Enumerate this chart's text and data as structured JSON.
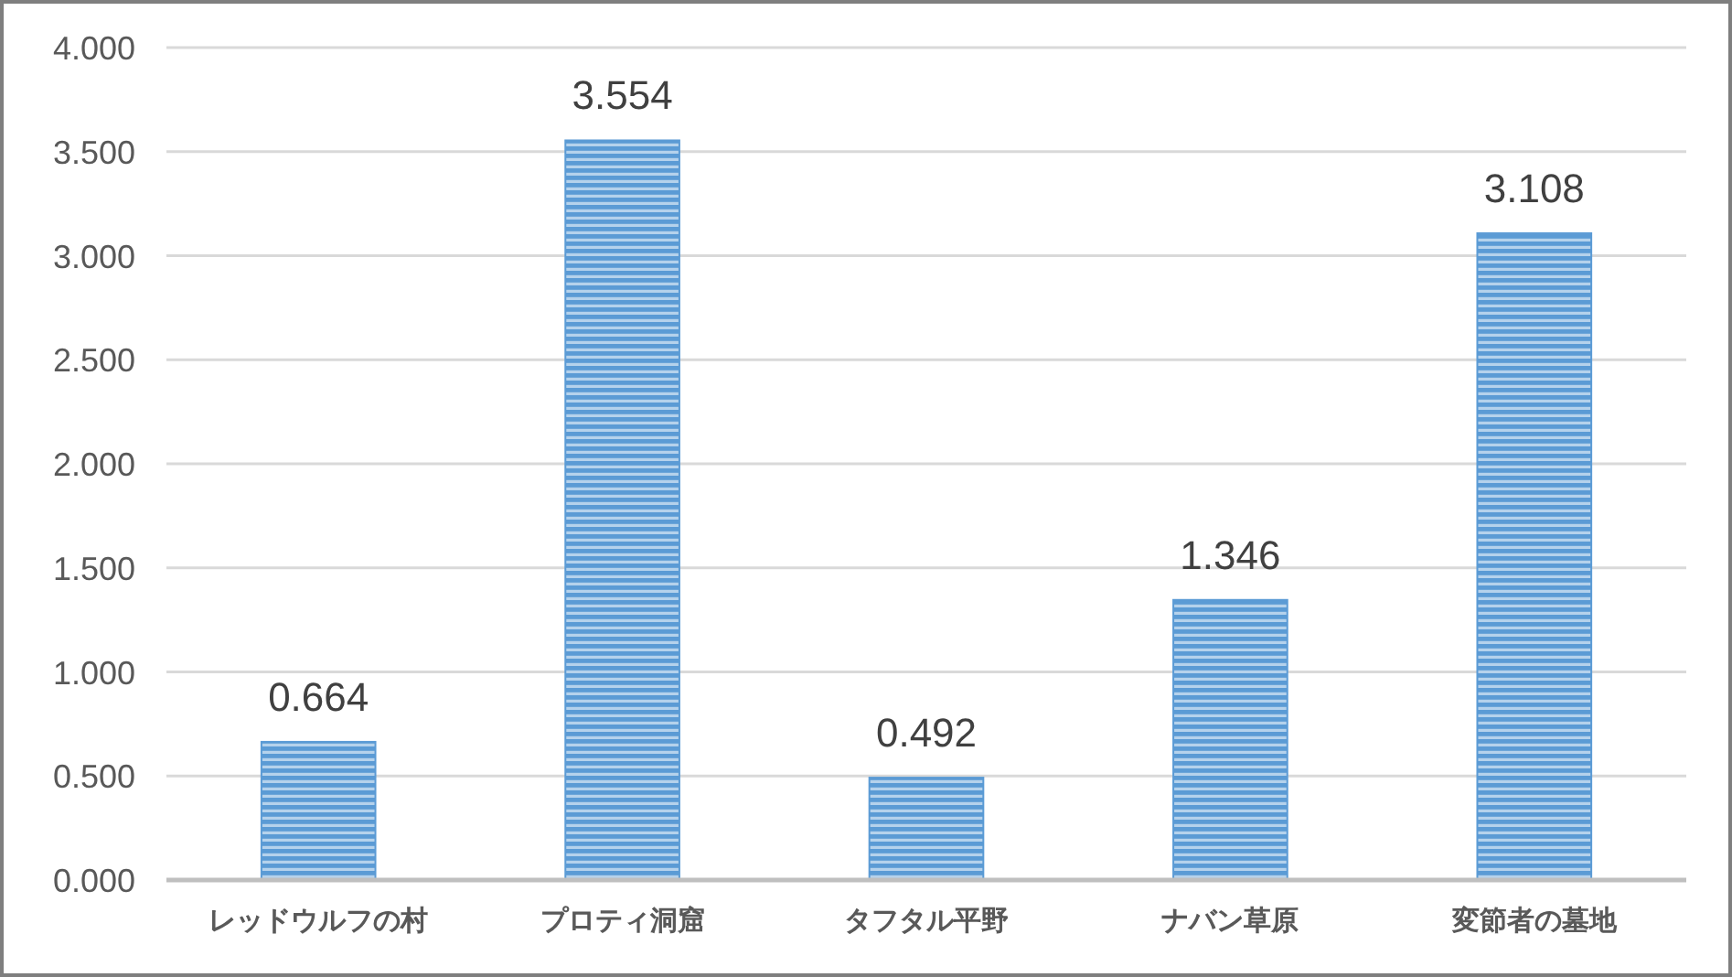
{
  "chart_data": {
    "type": "bar",
    "categories": [
      "レッドウルフの村",
      "プロティ洞窟",
      "タフタル平野",
      "ナバン草原",
      "変節者の墓地"
    ],
    "values": [
      0.664,
      3.554,
      0.492,
      1.346,
      3.108
    ],
    "color": "#5b9bd5",
    "ylim": [
      0,
      4
    ],
    "yticks": [
      {
        "value": 0,
        "label": "0.000"
      },
      {
        "value": 0.5,
        "label": "0.500"
      },
      {
        "value": 1,
        "label": "1.000"
      },
      {
        "value": 1.5,
        "label": "1.500"
      },
      {
        "value": 2,
        "label": "2.000"
      },
      {
        "value": 2.5,
        "label": "2.500"
      },
      {
        "value": 3,
        "label": "3.000"
      },
      {
        "value": 3.5,
        "label": "3.500"
      },
      {
        "value": 4,
        "label": "4.000"
      }
    ],
    "grid": "y",
    "data_labels": true
  }
}
